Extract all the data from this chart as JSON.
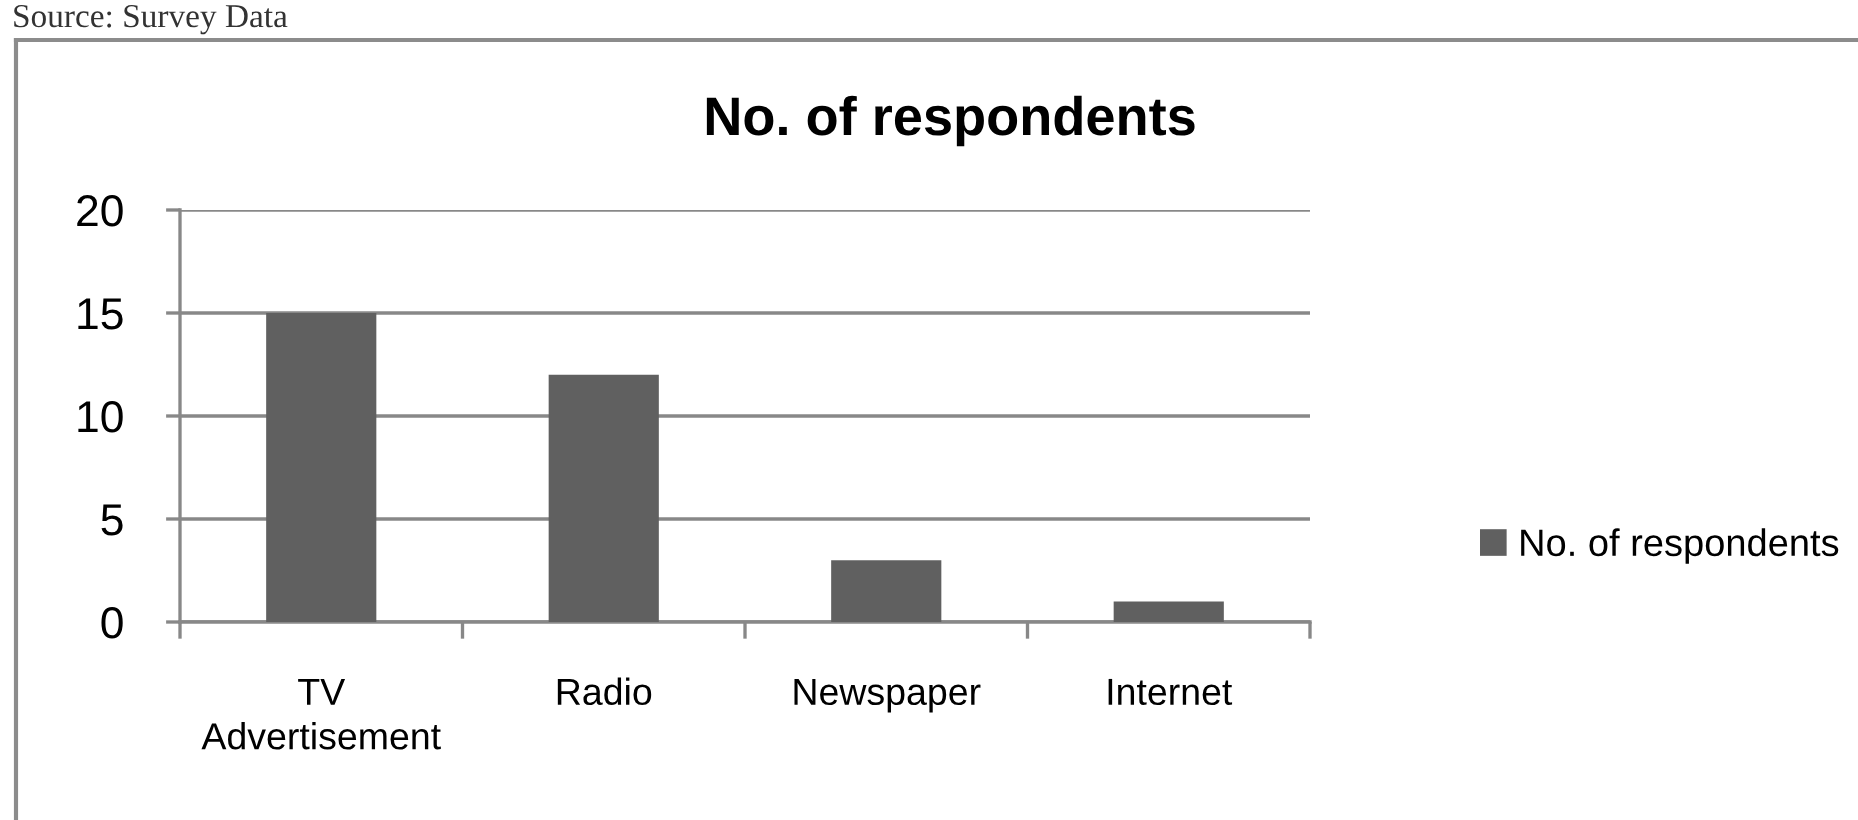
{
  "chart_data": {
    "type": "bar",
    "title": "No. of respondents",
    "categories": [
      "TV\nAdvertisement",
      "Radio",
      "Newspaper",
      "Internet"
    ],
    "series": [
      {
        "name": "No. of respondents",
        "color": "#606060",
        "values": [
          15,
          12,
          3,
          1
        ]
      }
    ],
    "ylim": [
      0,
      20
    ],
    "yticks": [
      0,
      5,
      10,
      15,
      20
    ],
    "grid": "y",
    "legend": "right",
    "annotations": [
      "Source: Survey Data"
    ]
  }
}
